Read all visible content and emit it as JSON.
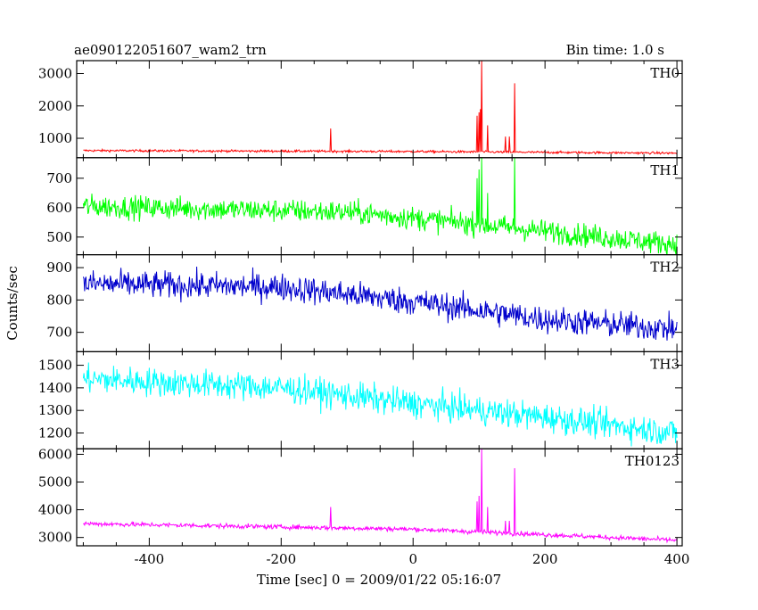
{
  "chart_data": {
    "type": "line",
    "title": "ae090122051607_wam2_trn",
    "bin_time_label": "Bin time: 1.0 s",
    "xlabel": "Time [sec] 0 = 2009/01/22 05:16:07",
    "ylabel": "Counts/sec",
    "xlim": [
      -510,
      408
    ],
    "x_ticks": [
      -400,
      -200,
      0,
      200,
      400
    ],
    "grid": false,
    "panels": [
      {
        "name": "TH0",
        "color": "#ff0000",
        "ylim": [
          400,
          3400
        ],
        "y_ticks": [
          1000,
          2000,
          3000
        ],
        "trend": [
          [
            -500,
            620
          ],
          [
            0,
            590
          ],
          [
            400,
            540
          ]
        ],
        "noise": 25,
        "spikes": [
          [
            -125,
            1300
          ],
          [
            97,
            1700
          ],
          [
            100,
            1800
          ],
          [
            102,
            1900
          ],
          [
            104,
            3400
          ],
          [
            113,
            1400
          ],
          [
            140,
            1050
          ],
          [
            146,
            1050
          ],
          [
            154,
            2700
          ]
        ]
      },
      {
        "name": "TH1",
        "color": "#00ff00",
        "ylim": [
          440,
          770
        ],
        "y_ticks": [
          500,
          600,
          700
        ],
        "trend": [
          [
            -500,
            605
          ],
          [
            -100,
            585
          ],
          [
            0,
            565
          ],
          [
            400,
            475
          ]
        ],
        "noise": 28,
        "spikes": [
          [
            97,
            700
          ],
          [
            100,
            730
          ],
          [
            104,
            770
          ],
          [
            113,
            650
          ],
          [
            154,
            770
          ]
        ]
      },
      {
        "name": "TH2",
        "color": "#0000cc",
        "ylim": [
          640,
          940
        ],
        "y_ticks": [
          700,
          800,
          900
        ],
        "trend": [
          [
            -500,
            850
          ],
          [
            -200,
            840
          ],
          [
            0,
            795
          ],
          [
            200,
            740
          ],
          [
            400,
            710
          ]
        ],
        "noise": 30,
        "spikes": []
      },
      {
        "name": "TH3",
        "color": "#00ffff",
        "ylim": [
          1130,
          1560
        ],
        "y_ticks": [
          1200,
          1300,
          1400,
          1500
        ],
        "trend": [
          [
            -500,
            1440
          ],
          [
            -200,
            1400
          ],
          [
            0,
            1330
          ],
          [
            200,
            1270
          ],
          [
            400,
            1200
          ]
        ],
        "noise": 45,
        "spikes": []
      },
      {
        "name": "TH0123",
        "color": "#ff00ff",
        "ylim": [
          2700,
          6200
        ],
        "y_ticks": [
          3000,
          4000,
          5000,
          6000
        ],
        "trend": [
          [
            -500,
            3500
          ],
          [
            0,
            3300
          ],
          [
            400,
            2900
          ]
        ],
        "noise": 60,
        "spikes": [
          [
            -125,
            4100
          ],
          [
            97,
            4300
          ],
          [
            100,
            4500
          ],
          [
            104,
            6200
          ],
          [
            113,
            4100
          ],
          [
            140,
            3600
          ],
          [
            146,
            3600
          ],
          [
            154,
            5500
          ]
        ]
      }
    ]
  }
}
